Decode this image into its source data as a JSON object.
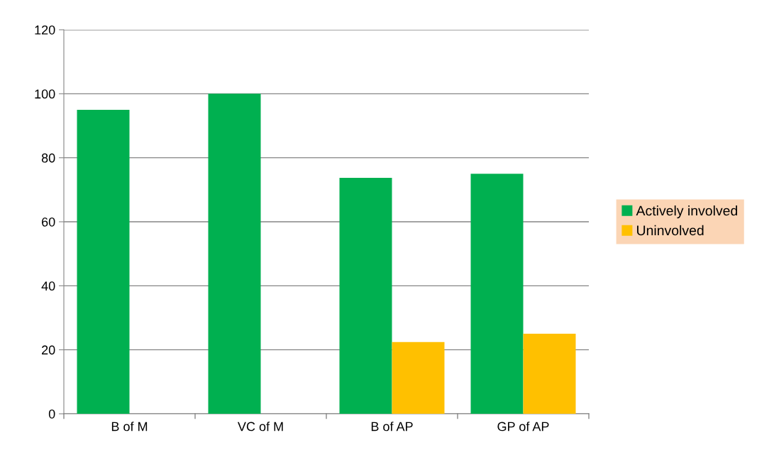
{
  "chart_data": {
    "type": "bar",
    "categories": [
      "B of M",
      "VC of M",
      "B of AP",
      "GP of AP"
    ],
    "series": [
      {
        "name": "Actively involved",
        "color": "#00b050",
        "values": [
          95,
          100,
          73.7,
          75
        ]
      },
      {
        "name": "Uninvolved",
        "color": "#ffc000",
        "values": [
          null,
          null,
          22.4,
          25
        ]
      }
    ],
    "ylim": [
      0,
      120
    ],
    "yticks": [
      0,
      20,
      40,
      60,
      80,
      100,
      120
    ],
    "grid": "y",
    "legend": "right"
  }
}
